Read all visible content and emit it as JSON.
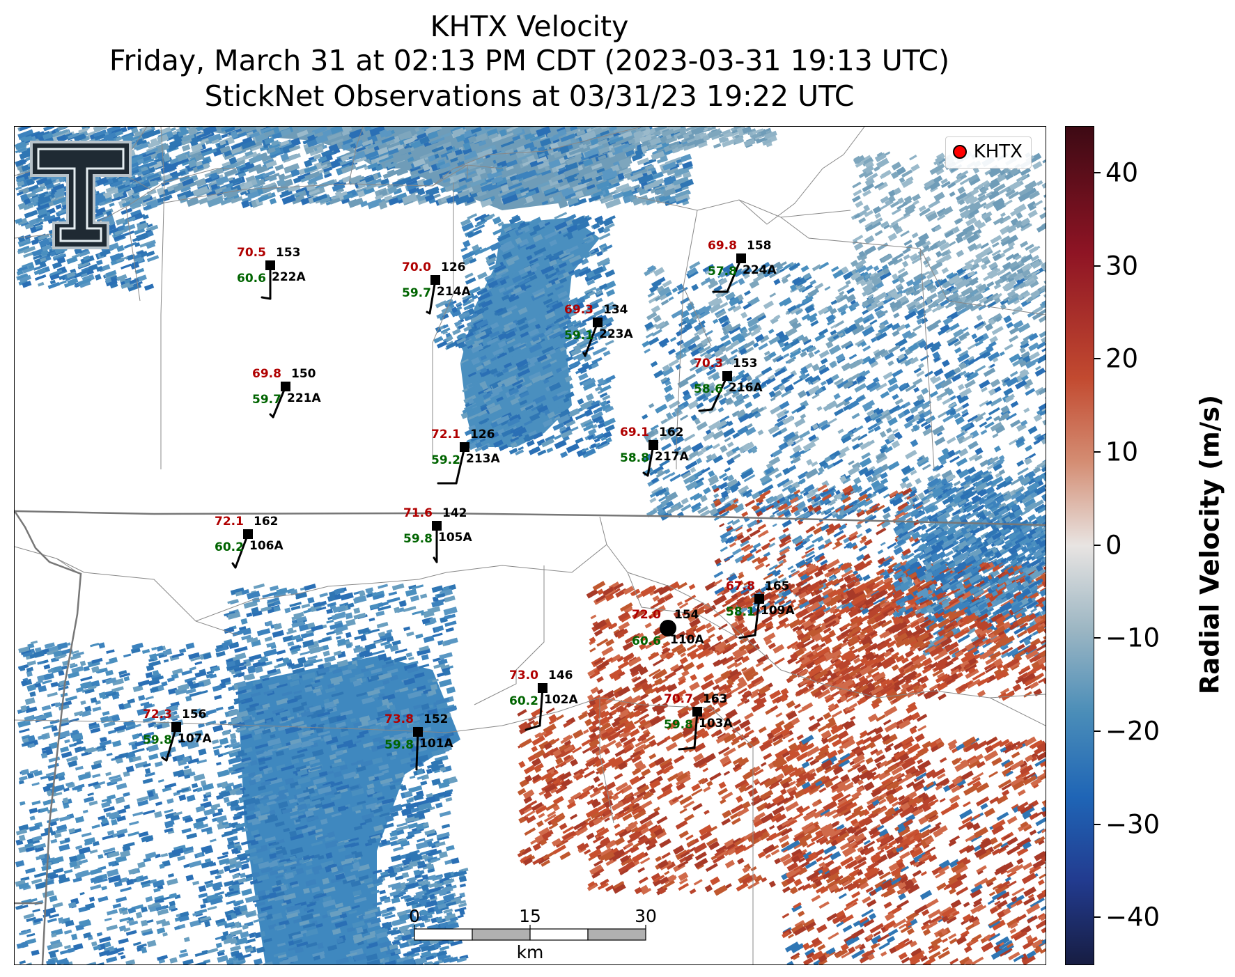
{
  "title": {
    "line1": "KHTX Velocity",
    "line2": "Friday, March 31 at 02:13 PM CDT (2023-03-31 19:13 UTC)",
    "line3": "StickNet Observations at 03/31/23 19:22 UTC"
  },
  "legend": {
    "label": "KHTX",
    "marker_color": "#ff0000"
  },
  "colorbar": {
    "label": "Radial Velocity (m/s)",
    "ticks": [
      "40",
      "30",
      "20",
      "10",
      "0",
      "−10",
      "−20",
      "−30",
      "−40"
    ],
    "range": [
      -45,
      45
    ],
    "colors": {
      "max": "#3d0a14",
      "high": "#c24a30",
      "zero": "#e8e4e2",
      "low": "#1f65b6",
      "min": "#171d42"
    }
  },
  "scale_bar": {
    "ticks": [
      "0",
      "15",
      "30"
    ],
    "unit": "km"
  },
  "radar_site": {
    "id": "110A",
    "temp": "72.0",
    "dew": "60.6",
    "pressure": "154"
  },
  "stations": [
    {
      "id": "222A",
      "temp": "70.5",
      "dew": "60.6",
      "pressure": "153"
    },
    {
      "id": "214A",
      "temp": "70.0",
      "dew": "59.7",
      "pressure": "126"
    },
    {
      "id": "224A",
      "temp": "69.8",
      "dew": "57.8",
      "pressure": "158"
    },
    {
      "id": "223A",
      "temp": "69.3",
      "dew": "59.1",
      "pressure": "134"
    },
    {
      "id": "221A",
      "temp": "69.8",
      "dew": "59.7",
      "pressure": "150"
    },
    {
      "id": "216A",
      "temp": "70.3",
      "dew": "58.6",
      "pressure": "153"
    },
    {
      "id": "213A",
      "temp": "72.1",
      "dew": "59.2",
      "pressure": "126"
    },
    {
      "id": "217A",
      "temp": "69.1",
      "dew": "58.8",
      "pressure": "162"
    },
    {
      "id": "106A",
      "temp": "72.1",
      "dew": "60.2",
      "pressure": "162"
    },
    {
      "id": "105A",
      "temp": "71.6",
      "dew": "59.8",
      "pressure": "142"
    },
    {
      "id": "109A",
      "temp": "67.8",
      "dew": "58.1",
      "pressure": "165"
    },
    {
      "id": "102A",
      "temp": "73.0",
      "dew": "60.2",
      "pressure": "146"
    },
    {
      "id": "103A",
      "temp": "70.7",
      "dew": "59.8",
      "pressure": "163"
    },
    {
      "id": "107A",
      "temp": "72.3",
      "dew": "59.8",
      "pressure": "156"
    },
    {
      "id": "101A",
      "temp": "73.8",
      "dew": "59.8",
      "pressure": "152"
    }
  ],
  "logo": {
    "letter": "T"
  }
}
